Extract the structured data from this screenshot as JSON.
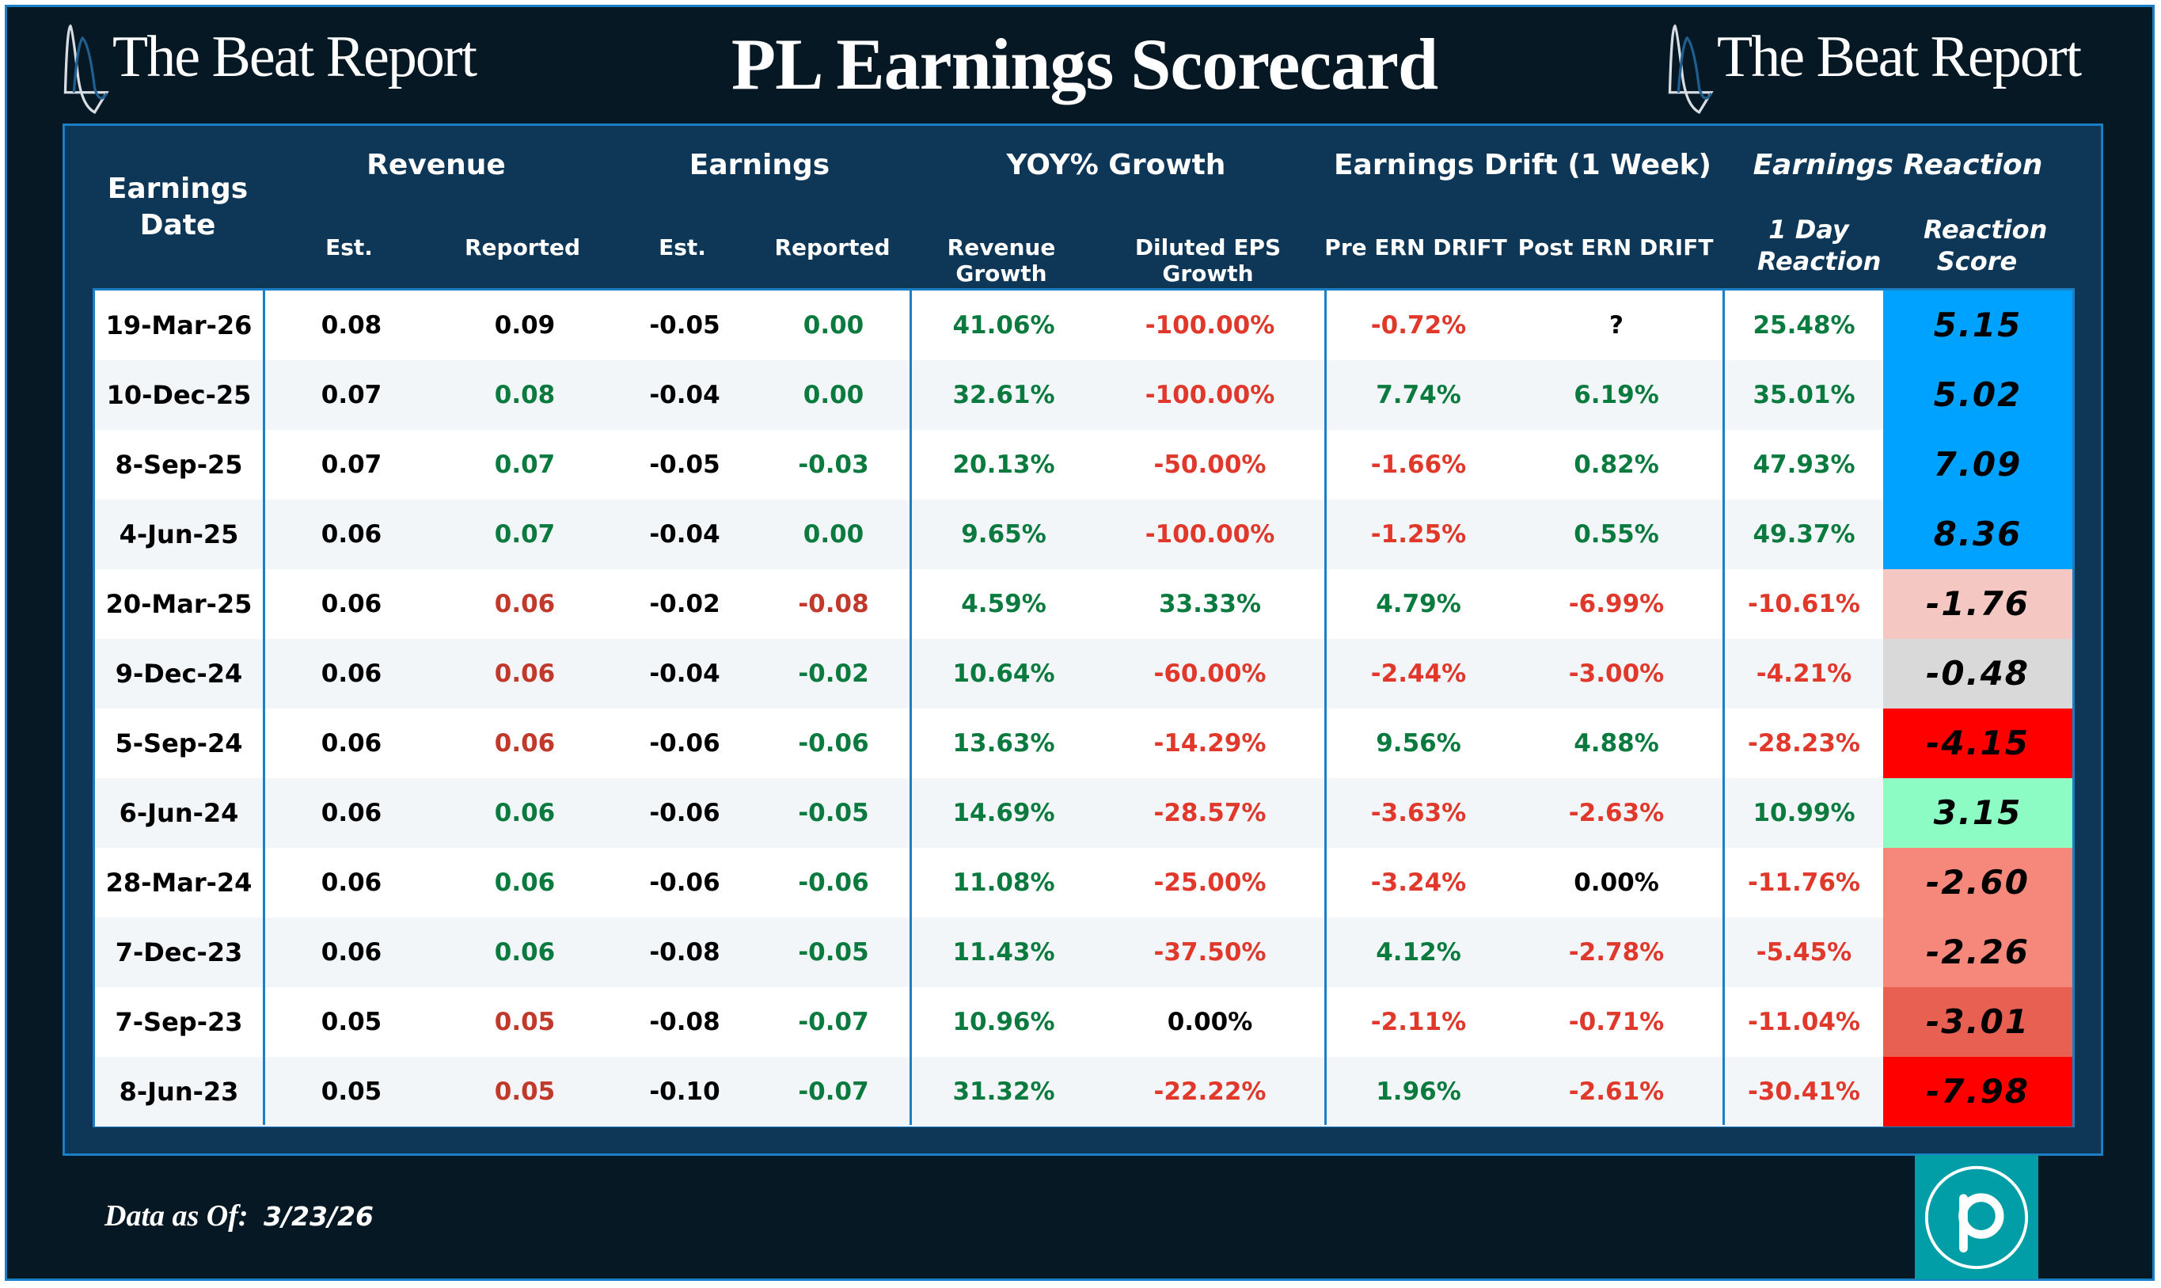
{
  "header": {
    "brand_left": "The Beat Report",
    "brand_right": "The Beat Report",
    "title": "PL Earnings Scorecard"
  },
  "columns": {
    "date": "Earnings Date",
    "revenue": "Revenue",
    "earnings": "Earnings",
    "yoy": "YOY% Growth",
    "drift": "Earnings Drift (1 Week)",
    "reaction": "Earnings Reaction",
    "sub": {
      "rev_est": "Est.",
      "rev_rep": "Reported",
      "earn_est": "Est.",
      "earn_rep": "Reported",
      "rev_growth": "Revenue Growth",
      "eps_growth": "Diluted EPS Growth",
      "pre_drift": "Pre ERN DRIFT",
      "post_drift": "Post ERN DRIFT",
      "day_reaction": "1 Day Reaction",
      "score": "Reaction Score"
    }
  },
  "colors": {
    "positive": "#0b7a3e",
    "negative": "#e0392b",
    "neutral": "#000000",
    "rev_miss": "#c0392b"
  },
  "rows": [
    {
      "date": "19-Mar-26",
      "rev_est": "0.08",
      "rev_rep": "0.09",
      "rev_rep_tone": "neutral",
      "earn_est": "-0.05",
      "earn_rep": "0.00",
      "earn_rep_tone": "positive",
      "rev_growth": "41.06%",
      "rev_growth_tone": "positive",
      "eps_growth": "-100.00%",
      "eps_growth_tone": "negative",
      "pre_drift": "-0.72%",
      "pre_drift_tone": "negative",
      "post_drift": "?",
      "post_drift_tone": "neutral",
      "day_reaction": "25.48%",
      "day_reaction_tone": "positive",
      "score": "5.15",
      "score_bg": "#00a2ff"
    },
    {
      "date": "10-Dec-25",
      "rev_est": "0.07",
      "rev_rep": "0.08",
      "rev_rep_tone": "positive",
      "earn_est": "-0.04",
      "earn_rep": "0.00",
      "earn_rep_tone": "positive",
      "rev_growth": "32.61%",
      "rev_growth_tone": "positive",
      "eps_growth": "-100.00%",
      "eps_growth_tone": "negative",
      "pre_drift": "7.74%",
      "pre_drift_tone": "positive",
      "post_drift": "6.19%",
      "post_drift_tone": "positive",
      "day_reaction": "35.01%",
      "day_reaction_tone": "positive",
      "score": "5.02",
      "score_bg": "#00a2ff"
    },
    {
      "date": "8-Sep-25",
      "rev_est": "0.07",
      "rev_rep": "0.07",
      "rev_rep_tone": "positive",
      "earn_est": "-0.05",
      "earn_rep": "-0.03",
      "earn_rep_tone": "positive",
      "rev_growth": "20.13%",
      "rev_growth_tone": "positive",
      "eps_growth": "-50.00%",
      "eps_growth_tone": "negative",
      "pre_drift": "-1.66%",
      "pre_drift_tone": "negative",
      "post_drift": "0.82%",
      "post_drift_tone": "positive",
      "day_reaction": "47.93%",
      "day_reaction_tone": "positive",
      "score": "7.09",
      "score_bg": "#00a2ff"
    },
    {
      "date": "4-Jun-25",
      "rev_est": "0.06",
      "rev_rep": "0.07",
      "rev_rep_tone": "positive",
      "earn_est": "-0.04",
      "earn_rep": "0.00",
      "earn_rep_tone": "positive",
      "rev_growth": "9.65%",
      "rev_growth_tone": "positive",
      "eps_growth": "-100.00%",
      "eps_growth_tone": "negative",
      "pre_drift": "-1.25%",
      "pre_drift_tone": "negative",
      "post_drift": "0.55%",
      "post_drift_tone": "positive",
      "day_reaction": "49.37%",
      "day_reaction_tone": "positive",
      "score": "8.36",
      "score_bg": "#00a2ff"
    },
    {
      "date": "20-Mar-25",
      "rev_est": "0.06",
      "rev_rep": "0.06",
      "rev_rep_tone": "rev_miss",
      "earn_est": "-0.02",
      "earn_rep": "-0.08",
      "earn_rep_tone": "rev_miss",
      "rev_growth": "4.59%",
      "rev_growth_tone": "positive",
      "eps_growth": "33.33%",
      "eps_growth_tone": "positive",
      "pre_drift": "4.79%",
      "pre_drift_tone": "positive",
      "post_drift": "-6.99%",
      "post_drift_tone": "negative",
      "day_reaction": "-10.61%",
      "day_reaction_tone": "negative",
      "score": "-1.76",
      "score_bg": "#f4c7c3"
    },
    {
      "date": "9-Dec-24",
      "rev_est": "0.06",
      "rev_rep": "0.06",
      "rev_rep_tone": "rev_miss",
      "earn_est": "-0.04",
      "earn_rep": "-0.02",
      "earn_rep_tone": "positive",
      "rev_growth": "10.64%",
      "rev_growth_tone": "positive",
      "eps_growth": "-60.00%",
      "eps_growth_tone": "negative",
      "pre_drift": "-2.44%",
      "pre_drift_tone": "negative",
      "post_drift": "-3.00%",
      "post_drift_tone": "negative",
      "day_reaction": "-4.21%",
      "day_reaction_tone": "negative",
      "score": "-0.48",
      "score_bg": "#d9d9d9"
    },
    {
      "date": "5-Sep-24",
      "rev_est": "0.06",
      "rev_rep": "0.06",
      "rev_rep_tone": "rev_miss",
      "earn_est": "-0.06",
      "earn_rep": "-0.06",
      "earn_rep_tone": "positive",
      "rev_growth": "13.63%",
      "rev_growth_tone": "positive",
      "eps_growth": "-14.29%",
      "eps_growth_tone": "negative",
      "pre_drift": "9.56%",
      "pre_drift_tone": "positive",
      "post_drift": "4.88%",
      "post_drift_tone": "positive",
      "day_reaction": "-28.23%",
      "day_reaction_tone": "negative",
      "score": "-4.15",
      "score_bg": "#ff0000"
    },
    {
      "date": "6-Jun-24",
      "rev_est": "0.06",
      "rev_rep": "0.06",
      "rev_rep_tone": "positive",
      "earn_est": "-0.06",
      "earn_rep": "-0.05",
      "earn_rep_tone": "positive",
      "rev_growth": "14.69%",
      "rev_growth_tone": "positive",
      "eps_growth": "-28.57%",
      "eps_growth_tone": "negative",
      "pre_drift": "-3.63%",
      "pre_drift_tone": "negative",
      "post_drift": "-2.63%",
      "post_drift_tone": "negative",
      "day_reaction": "10.99%",
      "day_reaction_tone": "positive",
      "score": "3.15",
      "score_bg": "#8cfcc4"
    },
    {
      "date": "28-Mar-24",
      "rev_est": "0.06",
      "rev_rep": "0.06",
      "rev_rep_tone": "positive",
      "earn_est": "-0.06",
      "earn_rep": "-0.06",
      "earn_rep_tone": "positive",
      "rev_growth": "11.08%",
      "rev_growth_tone": "positive",
      "eps_growth": "-25.00%",
      "eps_growth_tone": "negative",
      "pre_drift": "-3.24%",
      "pre_drift_tone": "negative",
      "post_drift": "0.00%",
      "post_drift_tone": "neutral",
      "day_reaction": "-11.76%",
      "day_reaction_tone": "negative",
      "score": "-2.60",
      "score_bg": "#f6877b"
    },
    {
      "date": "7-Dec-23",
      "rev_est": "0.06",
      "rev_rep": "0.06",
      "rev_rep_tone": "positive",
      "earn_est": "-0.08",
      "earn_rep": "-0.05",
      "earn_rep_tone": "positive",
      "rev_growth": "11.43%",
      "rev_growth_tone": "positive",
      "eps_growth": "-37.50%",
      "eps_growth_tone": "negative",
      "pre_drift": "4.12%",
      "pre_drift_tone": "positive",
      "post_drift": "-2.78%",
      "post_drift_tone": "negative",
      "day_reaction": "-5.45%",
      "day_reaction_tone": "negative",
      "score": "-2.26",
      "score_bg": "#f6877b"
    },
    {
      "date": "7-Sep-23",
      "rev_est": "0.05",
      "rev_rep": "0.05",
      "rev_rep_tone": "rev_miss",
      "earn_est": "-0.08",
      "earn_rep": "-0.07",
      "earn_rep_tone": "positive",
      "rev_growth": "10.96%",
      "rev_growth_tone": "positive",
      "eps_growth": "0.00%",
      "eps_growth_tone": "neutral",
      "pre_drift": "-2.11%",
      "pre_drift_tone": "negative",
      "post_drift": "-0.71%",
      "post_drift_tone": "negative",
      "day_reaction": "-11.04%",
      "day_reaction_tone": "negative",
      "score": "-3.01",
      "score_bg": "#e86051"
    },
    {
      "date": "8-Jun-23",
      "rev_est": "0.05",
      "rev_rep": "0.05",
      "rev_rep_tone": "rev_miss",
      "earn_est": "-0.10",
      "earn_rep": "-0.07",
      "earn_rep_tone": "positive",
      "rev_growth": "31.32%",
      "rev_growth_tone": "positive",
      "eps_growth": "-22.22%",
      "eps_growth_tone": "negative",
      "pre_drift": "1.96%",
      "pre_drift_tone": "positive",
      "post_drift": "-2.61%",
      "post_drift_tone": "negative",
      "day_reaction": "-30.41%",
      "day_reaction_tone": "negative",
      "score": "-7.98",
      "score_bg": "#ff0000"
    }
  ],
  "footer": {
    "label": "Data as Of:",
    "date": "3/23/26",
    "logo_icon": "p-circle-logo-icon"
  }
}
